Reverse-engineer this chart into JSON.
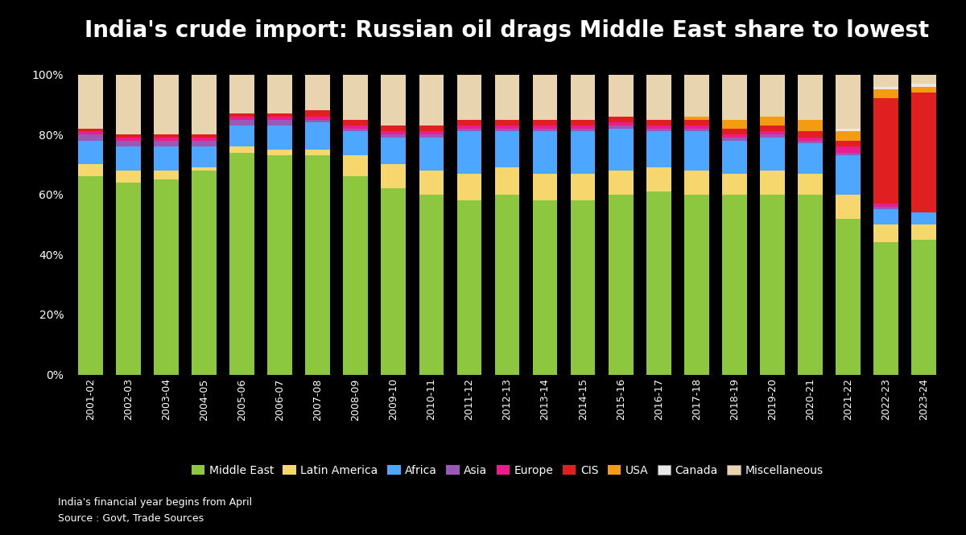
{
  "title": "India's crude import: Russian oil drags Middle East share to lowest",
  "categories": [
    "2001-02",
    "2002-03",
    "2003-04",
    "2004-05",
    "2005-06",
    "2006-07",
    "2007-08",
    "2008-09",
    "2009-10",
    "2010-11",
    "2011-12",
    "2012-13",
    "2013-14",
    "2014-15",
    "2015-16",
    "2016-17",
    "2017-18",
    "2018-19",
    "2019-20",
    "2020-21",
    "2021-22",
    "2022-23",
    "2023-24"
  ],
  "series": {
    "Middle East": [
      66,
      64,
      65,
      68,
      74,
      73,
      73,
      66,
      62,
      60,
      58,
      60,
      58,
      58,
      60,
      61,
      60,
      60,
      60,
      60,
      52,
      44,
      45
    ],
    "Latin America": [
      4,
      4,
      3,
      1,
      2,
      2,
      2,
      7,
      8,
      8,
      9,
      9,
      9,
      9,
      8,
      8,
      8,
      7,
      8,
      7,
      8,
      6,
      5
    ],
    "Africa": [
      8,
      8,
      8,
      7,
      7,
      8,
      9,
      8,
      9,
      11,
      14,
      12,
      14,
      14,
      14,
      12,
      13,
      11,
      11,
      10,
      13,
      5,
      4
    ],
    "Asia": [
      2,
      2,
      2,
      2,
      2,
      2,
      1,
      1,
      1,
      1,
      1,
      1,
      1,
      1,
      1,
      1,
      1,
      1,
      1,
      1,
      1,
      1,
      0
    ],
    "Europe": [
      1,
      1,
      1,
      1,
      1,
      1,
      1,
      1,
      1,
      1,
      1,
      1,
      1,
      1,
      1,
      1,
      1,
      1,
      1,
      1,
      2,
      1,
      0
    ],
    "CIS": [
      1,
      1,
      1,
      1,
      1,
      1,
      2,
      2,
      2,
      2,
      2,
      2,
      2,
      2,
      2,
      2,
      2,
      2,
      2,
      2,
      2,
      35,
      40
    ],
    "USA": [
      0,
      0,
      0,
      0,
      0,
      0,
      0,
      0,
      0,
      0,
      0,
      0,
      0,
      0,
      0,
      0,
      1,
      3,
      3,
      4,
      3,
      3,
      2
    ],
    "Canada": [
      0,
      0,
      0,
      0,
      0,
      0,
      0,
      0,
      0,
      0,
      0,
      0,
      0,
      0,
      0,
      0,
      0,
      0,
      0,
      0,
      1,
      1,
      1
    ],
    "Miscellaneous": [
      18,
      20,
      20,
      20,
      13,
      13,
      12,
      15,
      17,
      17,
      15,
      15,
      15,
      15,
      14,
      15,
      14,
      15,
      14,
      15,
      18,
      4,
      3
    ]
  },
  "colors": {
    "Middle East": "#8dc63f",
    "Latin America": "#f5d76e",
    "Africa": "#4da6ff",
    "Asia": "#9b59b6",
    "Europe": "#e91e8c",
    "CIS": "#e02020",
    "USA": "#f39c12",
    "Canada": "#e8e8e8",
    "Miscellaneous": "#e8d5b0"
  },
  "footnote1": "India's financial year begins from April",
  "footnote2": "Source : Govt, Trade Sources",
  "bg_color": "#000000",
  "text_color": "#ffffff",
  "title_fontsize": 20,
  "tick_fontsize": 9,
  "legend_fontsize": 10,
  "footnote_fontsize": 9,
  "layer_order": [
    "Middle East",
    "Latin America",
    "Africa",
    "Asia",
    "Europe",
    "CIS",
    "USA",
    "Canada",
    "Miscellaneous"
  ]
}
